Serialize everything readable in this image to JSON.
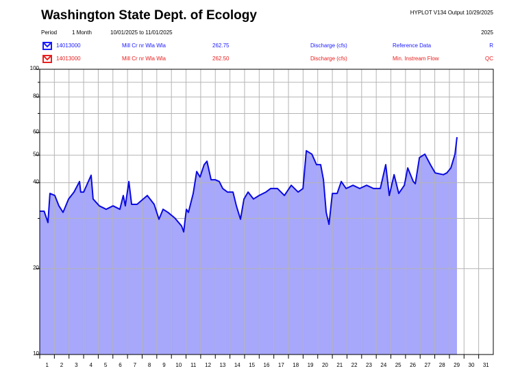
{
  "chart_data": {
    "type": "area",
    "title": "Washington State Dept. of Ecology",
    "output": "HYPLOT V134  Output 10/29/2025",
    "period_label": "Period",
    "period": "1 Month",
    "date_range": "10/01/2025  to  11/01/2025",
    "year": "2025",
    "legend": [
      {
        "station": "14013000",
        "name": "Mill Cr nr Wla Wla",
        "datum": "262.75",
        "parameter": "Discharge (cfs)",
        "description": "Reference Data",
        "flag": "R",
        "color": "#1a1aff"
      },
      {
        "station": "14013000",
        "name": "Mill Cr nr Wla Wla",
        "datum": "262.50",
        "parameter": "Discharge (cfs)",
        "description": "Min. Instream Flow",
        "flag": "QC",
        "color": "#e82020"
      }
    ],
    "categories": [
      "1",
      "2",
      "3",
      "4",
      "5",
      "6",
      "7",
      "8",
      "9",
      "10",
      "11",
      "12",
      "13",
      "14",
      "15",
      "16",
      "17",
      "18",
      "19",
      "20",
      "21",
      "22",
      "23",
      "24",
      "25",
      "26",
      "27",
      "28",
      "29",
      "30",
      "31"
    ],
    "xlim": [
      1,
      32
    ],
    "series": [
      {
        "name": "14013000",
        "color": "#0a0ae0",
        "fill": "#a7a7fb",
        "x": [
          1.0,
          1.3,
          1.56,
          1.7,
          2.03,
          2.31,
          2.59,
          2.97,
          3.34,
          3.72,
          3.8,
          4.0,
          4.51,
          4.65,
          5.07,
          5.54,
          6.01,
          6.48,
          6.71,
          6.85,
          7.09,
          7.28,
          7.65,
          8.35,
          8.82,
          9.15,
          9.43,
          9.76,
          10.23,
          10.7,
          10.84,
          11.02,
          11.16,
          11.49,
          11.73,
          11.96,
          12.24,
          12.43,
          12.71,
          12.99,
          13.27,
          13.51,
          13.83,
          14.21,
          14.44,
          14.72,
          14.96,
          15.24,
          15.61,
          15.99,
          16.46,
          16.78,
          17.25,
          17.72,
          18.19,
          18.66,
          18.99,
          19.22,
          19.6,
          19.92,
          20.2,
          20.39,
          20.58,
          20.77,
          21.0,
          21.33,
          21.61,
          21.94,
          22.41,
          22.87,
          23.34,
          23.81,
          24.28,
          24.65,
          24.89,
          25.22,
          25.54,
          25.92,
          26.15,
          26.53,
          26.67,
          26.95,
          27.32,
          27.7,
          28.03,
          28.59,
          28.82,
          29.1,
          29.38,
          29.52
        ],
        "values": [
          31.8,
          31.8,
          29.0,
          36.7,
          36.1,
          33.2,
          31.5,
          35.1,
          37.1,
          40.4,
          37.1,
          37.1,
          42.5,
          35.1,
          33.2,
          32.3,
          33.2,
          32.3,
          36.1,
          33.2,
          40.4,
          33.6,
          33.6,
          36.1,
          33.6,
          29.8,
          32.3,
          31.5,
          30.1,
          28.2,
          26.9,
          32.3,
          31.5,
          36.7,
          43.8,
          41.9,
          46.3,
          47.6,
          41.0,
          41.0,
          40.4,
          38.2,
          37.1,
          37.1,
          33.2,
          29.8,
          35.1,
          37.1,
          35.1,
          36.1,
          37.1,
          38.2,
          38.2,
          36.1,
          39.2,
          37.1,
          38.2,
          51.8,
          50.4,
          46.3,
          46.3,
          41.0,
          31.5,
          28.6,
          36.7,
          36.7,
          40.4,
          38.2,
          39.2,
          38.2,
          39.2,
          38.2,
          38.2,
          46.3,
          36.1,
          42.7,
          36.7,
          39.2,
          45.1,
          40.4,
          39.7,
          49.0,
          50.4,
          46.3,
          43.3,
          42.7,
          43.3,
          45.1,
          50.4,
          57.8
        ]
      }
    ],
    "ylim": [
      10,
      100
    ],
    "log_y": true,
    "yticks": [
      10,
      20,
      40,
      50,
      60,
      80,
      100
    ],
    "minor_yticks": [
      30,
      70,
      90
    ],
    "grid": true
  }
}
